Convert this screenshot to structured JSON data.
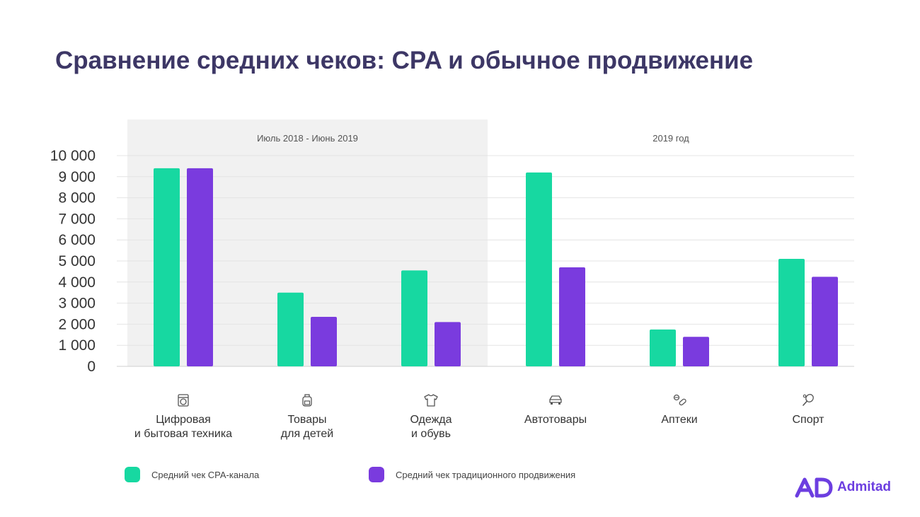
{
  "title": "Сравнение средних чеков: CPA и обычное продвижение",
  "colors": {
    "cpa": "#17d8a1",
    "traditional": "#7a3bde",
    "period_bg": "#f1f1f1",
    "title": "#3d3766"
  },
  "brand": {
    "name": "Admitad"
  },
  "chart_data": {
    "type": "bar",
    "periods": [
      {
        "label": "Июль 2018 - Июнь 2019",
        "categories": [
          0,
          1,
          2
        ],
        "shaded": true
      },
      {
        "label": "2019 год",
        "categories": [
          3,
          4,
          5
        ],
        "shaded": false
      }
    ],
    "categories": [
      {
        "lines": [
          "Цифровая",
          "и бытовая техника"
        ],
        "icon": "washing-machine-icon"
      },
      {
        "lines": [
          "Товары",
          "для детей"
        ],
        "icon": "backpack-icon"
      },
      {
        "lines": [
          "Одежда",
          "и обувь"
        ],
        "icon": "tshirt-icon"
      },
      {
        "lines": [
          "Автотовары"
        ],
        "icon": "car-icon"
      },
      {
        "lines": [
          "Аптеки"
        ],
        "icon": "pills-icon"
      },
      {
        "lines": [
          "Спорт"
        ],
        "icon": "racket-icon"
      }
    ],
    "series": [
      {
        "name": "Средний чек CPA-канала",
        "color": "#17d8a1",
        "values": [
          9400,
          3500,
          4550,
          9200,
          1750,
          5100
        ]
      },
      {
        "name": "Средний чек традиционного продвижения",
        "color": "#7a3bde",
        "values": [
          9400,
          2350,
          2100,
          4700,
          1400,
          4250
        ]
      }
    ],
    "yticks": [
      "0",
      "1 000",
      "2 000",
      "3 000",
      "4 000",
      "5 000",
      "6 000",
      "7 000",
      "8 000",
      "9 000",
      "10 000"
    ],
    "ylim": [
      0,
      10000
    ],
    "grid": true,
    "legend_position": "bottom"
  }
}
